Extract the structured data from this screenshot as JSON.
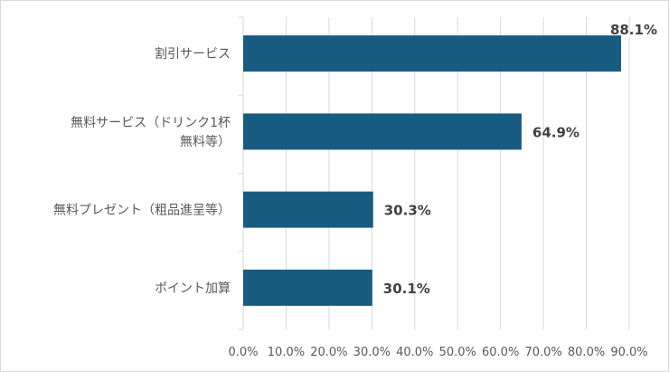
{
  "chart_data": {
    "type": "bar",
    "orientation": "horizontal",
    "categories": [
      [
        "割引サービス"
      ],
      [
        "無料サービス（ドリンク1杯",
        "無料等）"
      ],
      [
        "無料プレゼント（粗品進呈等）"
      ],
      [
        "ポイント加算"
      ]
    ],
    "values": [
      88.1,
      64.9,
      30.3,
      30.1
    ],
    "data_labels": [
      "88.1%",
      "64.9%",
      "30.3%",
      "30.1%"
    ],
    "xlim": [
      0,
      90
    ],
    "x_ticks": [
      0,
      10,
      20,
      30,
      40,
      50,
      60,
      70,
      80,
      90
    ],
    "x_tick_labels": [
      "0.0%",
      "10.0%",
      "20.0%",
      "30.0%",
      "40.0%",
      "50.0%",
      "60.0%",
      "70.0%",
      "80.0%",
      "90.0%"
    ],
    "grid": "vertical",
    "legend": "none",
    "title": "",
    "xlabel": "",
    "ylabel": "",
    "colors": {
      "bar": "#175c80",
      "grid": "#d9d9d9",
      "text": "#595959",
      "data_label": "#404040"
    }
  }
}
